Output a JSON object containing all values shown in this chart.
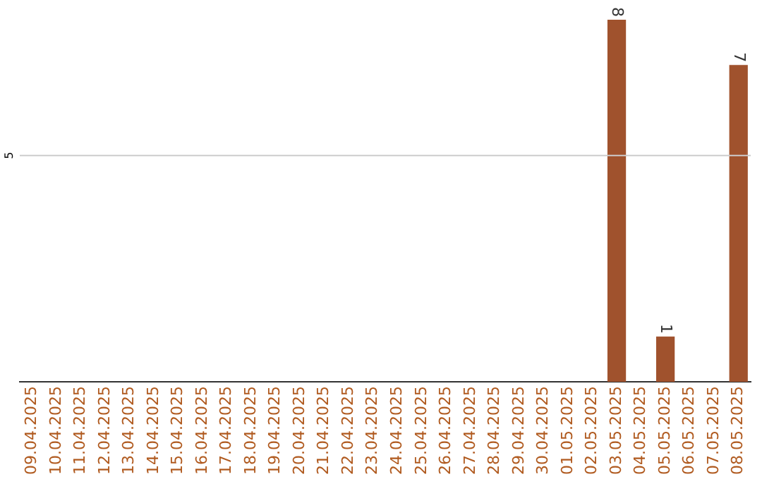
{
  "chart_data": {
    "type": "bar",
    "categories": [
      "09.04.2025",
      "10.04.2025",
      "11.04.2025",
      "12.04.2025",
      "13.04.2025",
      "14.04.2025",
      "15.04.2025",
      "16.04.2025",
      "17.04.2025",
      "18.04.2025",
      "19.04.2025",
      "20.04.2025",
      "21.04.2025",
      "22.04.2025",
      "23.04.2025",
      "24.04.2025",
      "25.04.2025",
      "26.04.2025",
      "27.04.2025",
      "28.04.2025",
      "29.04.2025",
      "30.04.2025",
      "01.05.2025",
      "02.05.2025",
      "03.05.2025",
      "04.05.2025",
      "05.05.2025",
      "06.05.2025",
      "07.05.2025",
      "08.05.2025"
    ],
    "values": [
      null,
      null,
      null,
      null,
      null,
      null,
      null,
      null,
      null,
      null,
      null,
      null,
      null,
      null,
      null,
      null,
      null,
      null,
      null,
      null,
      null,
      null,
      null,
      null,
      8,
      null,
      1,
      null,
      null,
      7
    ],
    "data_labels": true,
    "color": "#a0522d",
    "ylim": [
      0,
      8
    ],
    "yticks": [
      5
    ],
    "grid": "y",
    "legend": false
  }
}
